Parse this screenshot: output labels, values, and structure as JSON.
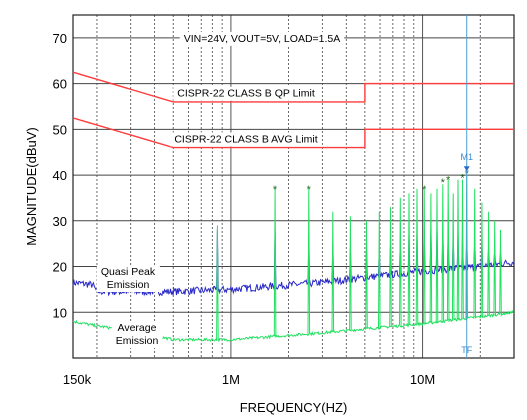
{
  "chart_data": {
    "type": "line",
    "title": "VIN=24V, VOUT=5V, LOAD=1.5A",
    "xlabel": "FREQUENCY(HZ)",
    "ylabel": "MAGNITUDE(dBuV)",
    "x_scale": "log",
    "xlim": [
      150000,
      30000000
    ],
    "ylim": [
      0,
      75
    ],
    "x_ticks": [
      {
        "value": 150000,
        "label": "150k"
      },
      {
        "value": 1000000,
        "label": "1M"
      },
      {
        "value": 10000000,
        "label": "10M"
      }
    ],
    "y_ticks": [
      10,
      20,
      30,
      40,
      50,
      60,
      70
    ],
    "grid": true,
    "limits": [
      {
        "name": "CISPR-22 CLASS B QP Limit",
        "color": "#ff3b3b",
        "points": [
          [
            150000,
            62.5
          ],
          [
            500000,
            56
          ],
          [
            5000000,
            56
          ],
          [
            5000000,
            60
          ],
          [
            30000000,
            60
          ]
        ]
      },
      {
        "name": "CISPR-22 CLASS B AVG Limit",
        "color": "#ff3b3b",
        "points": [
          [
            150000,
            52.5
          ],
          [
            500000,
            46
          ],
          [
            5000000,
            46
          ],
          [
            5000000,
            50
          ],
          [
            30000000,
            50
          ]
        ]
      }
    ],
    "series": [
      {
        "name": "Quasi Peak Emission",
        "color": "#2a2ac8",
        "baseline": [
          [
            150000,
            16.5
          ],
          [
            190000,
            16
          ],
          [
            200000,
            14.5
          ],
          [
            500000,
            14.5
          ],
          [
            1000000,
            15
          ],
          [
            3000000,
            16.5
          ],
          [
            10000000,
            19
          ],
          [
            20000000,
            20
          ],
          [
            30000000,
            21
          ]
        ],
        "spikes": [
          [
            850000,
            28
          ],
          [
            1700000,
            28
          ],
          [
            2550000,
            26
          ],
          [
            3400000,
            25
          ],
          [
            4200000,
            24
          ],
          [
            5100000,
            24
          ],
          [
            5950000,
            24
          ],
          [
            6800000,
            25
          ],
          [
            7650000,
            26
          ],
          [
            8500000,
            27
          ],
          [
            9350000,
            27
          ],
          [
            10200000,
            28
          ],
          [
            11050000,
            28
          ],
          [
            11900000,
            28
          ],
          [
            12750000,
            28
          ],
          [
            13600000,
            27
          ],
          [
            14450000,
            27
          ],
          [
            15300000,
            27
          ],
          [
            16150000,
            26
          ],
          [
            17000000,
            26
          ],
          [
            18700000,
            26
          ],
          [
            20400000,
            25
          ],
          [
            22100000,
            24
          ],
          [
            23800000,
            24
          ],
          [
            25500000,
            23
          ]
        ]
      },
      {
        "name": "Average Emission",
        "color": "#22e060",
        "baseline": [
          [
            150000,
            8
          ],
          [
            200000,
            7
          ],
          [
            300000,
            6
          ],
          [
            500000,
            4
          ],
          [
            1000000,
            4
          ],
          [
            3000000,
            5.5
          ],
          [
            10000000,
            7.5
          ],
          [
            20000000,
            9
          ],
          [
            30000000,
            10
          ]
        ],
        "spikes": [
          [
            850000,
            29
          ],
          [
            1700000,
            37
          ],
          [
            2550000,
            37
          ],
          [
            3400000,
            32
          ],
          [
            4200000,
            31
          ],
          [
            5100000,
            30
          ],
          [
            5950000,
            32
          ],
          [
            6800000,
            33
          ],
          [
            7650000,
            35
          ],
          [
            8500000,
            36
          ],
          [
            9350000,
            37
          ],
          [
            10200000,
            37
          ],
          [
            11050000,
            36
          ],
          [
            11900000,
            37
          ],
          [
            12750000,
            38
          ],
          [
            13600000,
            39
          ],
          [
            14450000,
            36
          ],
          [
            15300000,
            39
          ],
          [
            16150000,
            39
          ],
          [
            17000000,
            40
          ],
          [
            18700000,
            37
          ],
          [
            20400000,
            34
          ],
          [
            22100000,
            32
          ],
          [
            23800000,
            30
          ],
          [
            25500000,
            28
          ]
        ]
      }
    ],
    "markers": [
      {
        "x": 1700000,
        "y": 37
      },
      {
        "x": 2550000,
        "y": 37
      },
      {
        "x": 10200000,
        "y": 37
      },
      {
        "x": 12750000,
        "y": 38.5
      },
      {
        "x": 13600000,
        "y": 39
      },
      {
        "x": 16150000,
        "y": 39.5
      },
      {
        "x": 17000000,
        "y": 40.5
      }
    ],
    "marker_label": {
      "text": "M1",
      "x": 17000000,
      "y": 41.5
    },
    "reference_line": {
      "text": "TF",
      "x": 17000000
    },
    "annotations": [
      {
        "text": "Quasi Peak",
        "line2": "Emission"
      },
      {
        "text": "Average",
        "line2": "Emission"
      }
    ]
  }
}
